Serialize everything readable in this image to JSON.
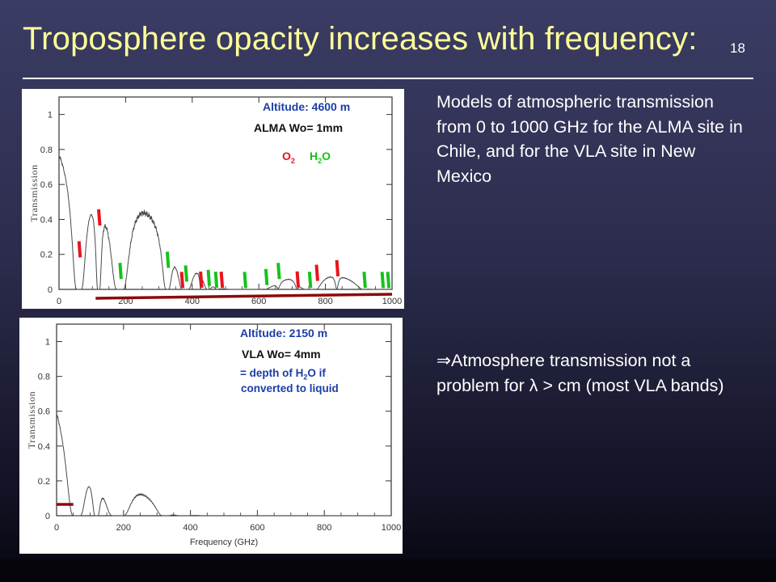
{
  "slide": {
    "title": "Troposphere opacity increases with frequency:",
    "number": "18",
    "models_text": "Models of atmospheric transmission from 0 to 1000 GHz for the ALMA site in Chile, and for the VLA site in New Mexico",
    "conclusion_arrow": "⇒",
    "conclusion_part1": "Atmosphere transmission not a problem for ",
    "conclusion_lambda": "λ",
    "conclusion_part2": " > cm (most VLA bands)"
  },
  "colors": {
    "title": "#ffff99",
    "o2_marker": "#e8141e",
    "h2o_marker": "#16c21c",
    "band_bar": "#8c0a0a",
    "annotation_blue": "#1b3da8",
    "curve": "#4a4a4a"
  },
  "chart_data": [
    {
      "type": "line",
      "id": "alma",
      "xlim": [
        0,
        1000
      ],
      "ylim": [
        0,
        1.1
      ],
      "xticks": [
        0,
        200,
        400,
        600,
        800,
        1000
      ],
      "yticks": [
        0,
        0.2,
        0.4,
        0.6,
        0.8,
        1
      ],
      "xlabel": "",
      "ylabel": "Transmission",
      "annotations": {
        "altitude": "Altitude: 4600 m",
        "water": "ALMA Wo= 1mm",
        "o2": "O",
        "o2_sub": "2",
        "h2o_h": "H",
        "h2o_sub": "2",
        "h2o_o": "O"
      },
      "o2_lines_GHz": [
        60,
        119,
        368,
        425,
        487,
        715,
        773,
        834
      ],
      "h2o_lines_GHz": [
        183,
        325,
        380,
        448,
        470,
        557,
        621,
        658,
        752,
        916,
        970,
        987
      ],
      "band_bar_GHz": [
        110,
        1000
      ]
    },
    {
      "type": "line",
      "id": "vla",
      "xlim": [
        0,
        1000
      ],
      "ylim": [
        0,
        1.1
      ],
      "xticks": [
        0,
        200,
        400,
        600,
        800,
        1000
      ],
      "yticks": [
        0,
        0.2,
        0.4,
        0.6,
        0.8,
        1
      ],
      "xlabel": "Frequency (GHz)",
      "ylabel": "Transmission",
      "annotations": {
        "altitude": "Altitude: 2150 m",
        "water": "VLA Wo= 4mm",
        "depth1_pre": "= depth of H",
        "depth1_sub": "2",
        "depth1_post": "O if",
        "depth2": "converted to liquid"
      },
      "band_bar_GHz": [
        0,
        50
      ]
    }
  ]
}
